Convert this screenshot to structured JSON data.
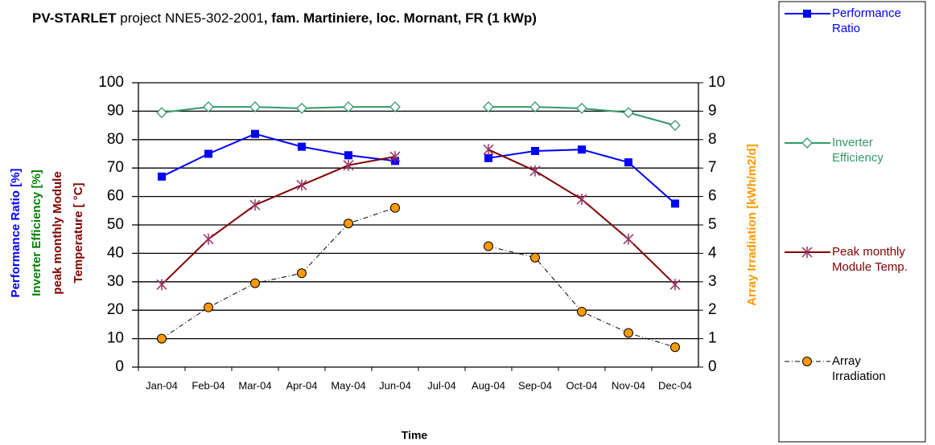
{
  "chart_data": {
    "type": "line",
    "title": [
      {
        "text": "PV-STARLET",
        "bold": true
      },
      {
        "text": " project NNE5-302-2001",
        "bold": false
      },
      {
        "text": ", fam. Martiniere, loc. Mornant, FR  (1 kWp)",
        "bold": true
      }
    ],
    "x_label": "Time",
    "y_labels": [
      {
        "text": "Performance Ratio [%]",
        "color": "#0000ff"
      },
      {
        "text": "Inverter Efficiency [%]",
        "color": "#008000"
      },
      {
        "text": "peak monthly Module",
        "color": "#800000"
      },
      {
        "text": "Temperature [ °C]",
        "color": "#800000"
      }
    ],
    "y2_label": {
      "text": "Array Irradiation [kWh/m2/d]",
      "color": "#ff9900"
    },
    "categories": [
      "Jan-04",
      "Feb-04",
      "Mar-04",
      "Apr-04",
      "May-04",
      "Jun-04",
      "Jul-04",
      "Aug-04",
      "Sep-04",
      "Oct-04",
      "Nov-04",
      "Dec-04"
    ],
    "ylim": [
      0,
      100
    ],
    "yticks": [
      0,
      10,
      20,
      30,
      40,
      50,
      60,
      70,
      80,
      90,
      100
    ],
    "y2lim": [
      0,
      10
    ],
    "y2ticks": [
      0,
      1,
      2,
      3,
      4,
      5,
      6,
      7,
      8,
      9,
      10
    ],
    "grid": true,
    "series": [
      {
        "name": "Performance Ratio",
        "color": "#0000ff",
        "marker": "square",
        "marker_color": "#0000ff",
        "values": [
          67,
          75,
          82,
          77.5,
          74.5,
          72.5,
          null,
          73.5,
          76,
          76.5,
          72,
          57.5
        ]
      },
      {
        "name": "Inverter Efficiency",
        "color": "#339966",
        "marker": "diamond",
        "marker_color": "#339966",
        "values": [
          89.5,
          91.5,
          91.5,
          91,
          91.5,
          91.5,
          null,
          91.5,
          91.5,
          91,
          89.5,
          85
        ]
      },
      {
        "name": "Peak monthly Module Temp.",
        "color": "#800000",
        "marker": "asterisk",
        "marker_color": "#993366",
        "values": [
          29,
          45,
          57,
          64,
          71,
          74,
          null,
          76.5,
          69,
          59,
          45,
          29
        ]
      },
      {
        "name": "Array Irradiation",
        "color": "#000000",
        "marker": "circle",
        "marker_color": "#ff9900",
        "dash": true,
        "axis": "y2",
        "values": [
          1.0,
          2.1,
          2.95,
          3.3,
          5.05,
          5.6,
          null,
          4.25,
          3.85,
          1.95,
          1.2,
          0.7
        ]
      }
    ]
  }
}
